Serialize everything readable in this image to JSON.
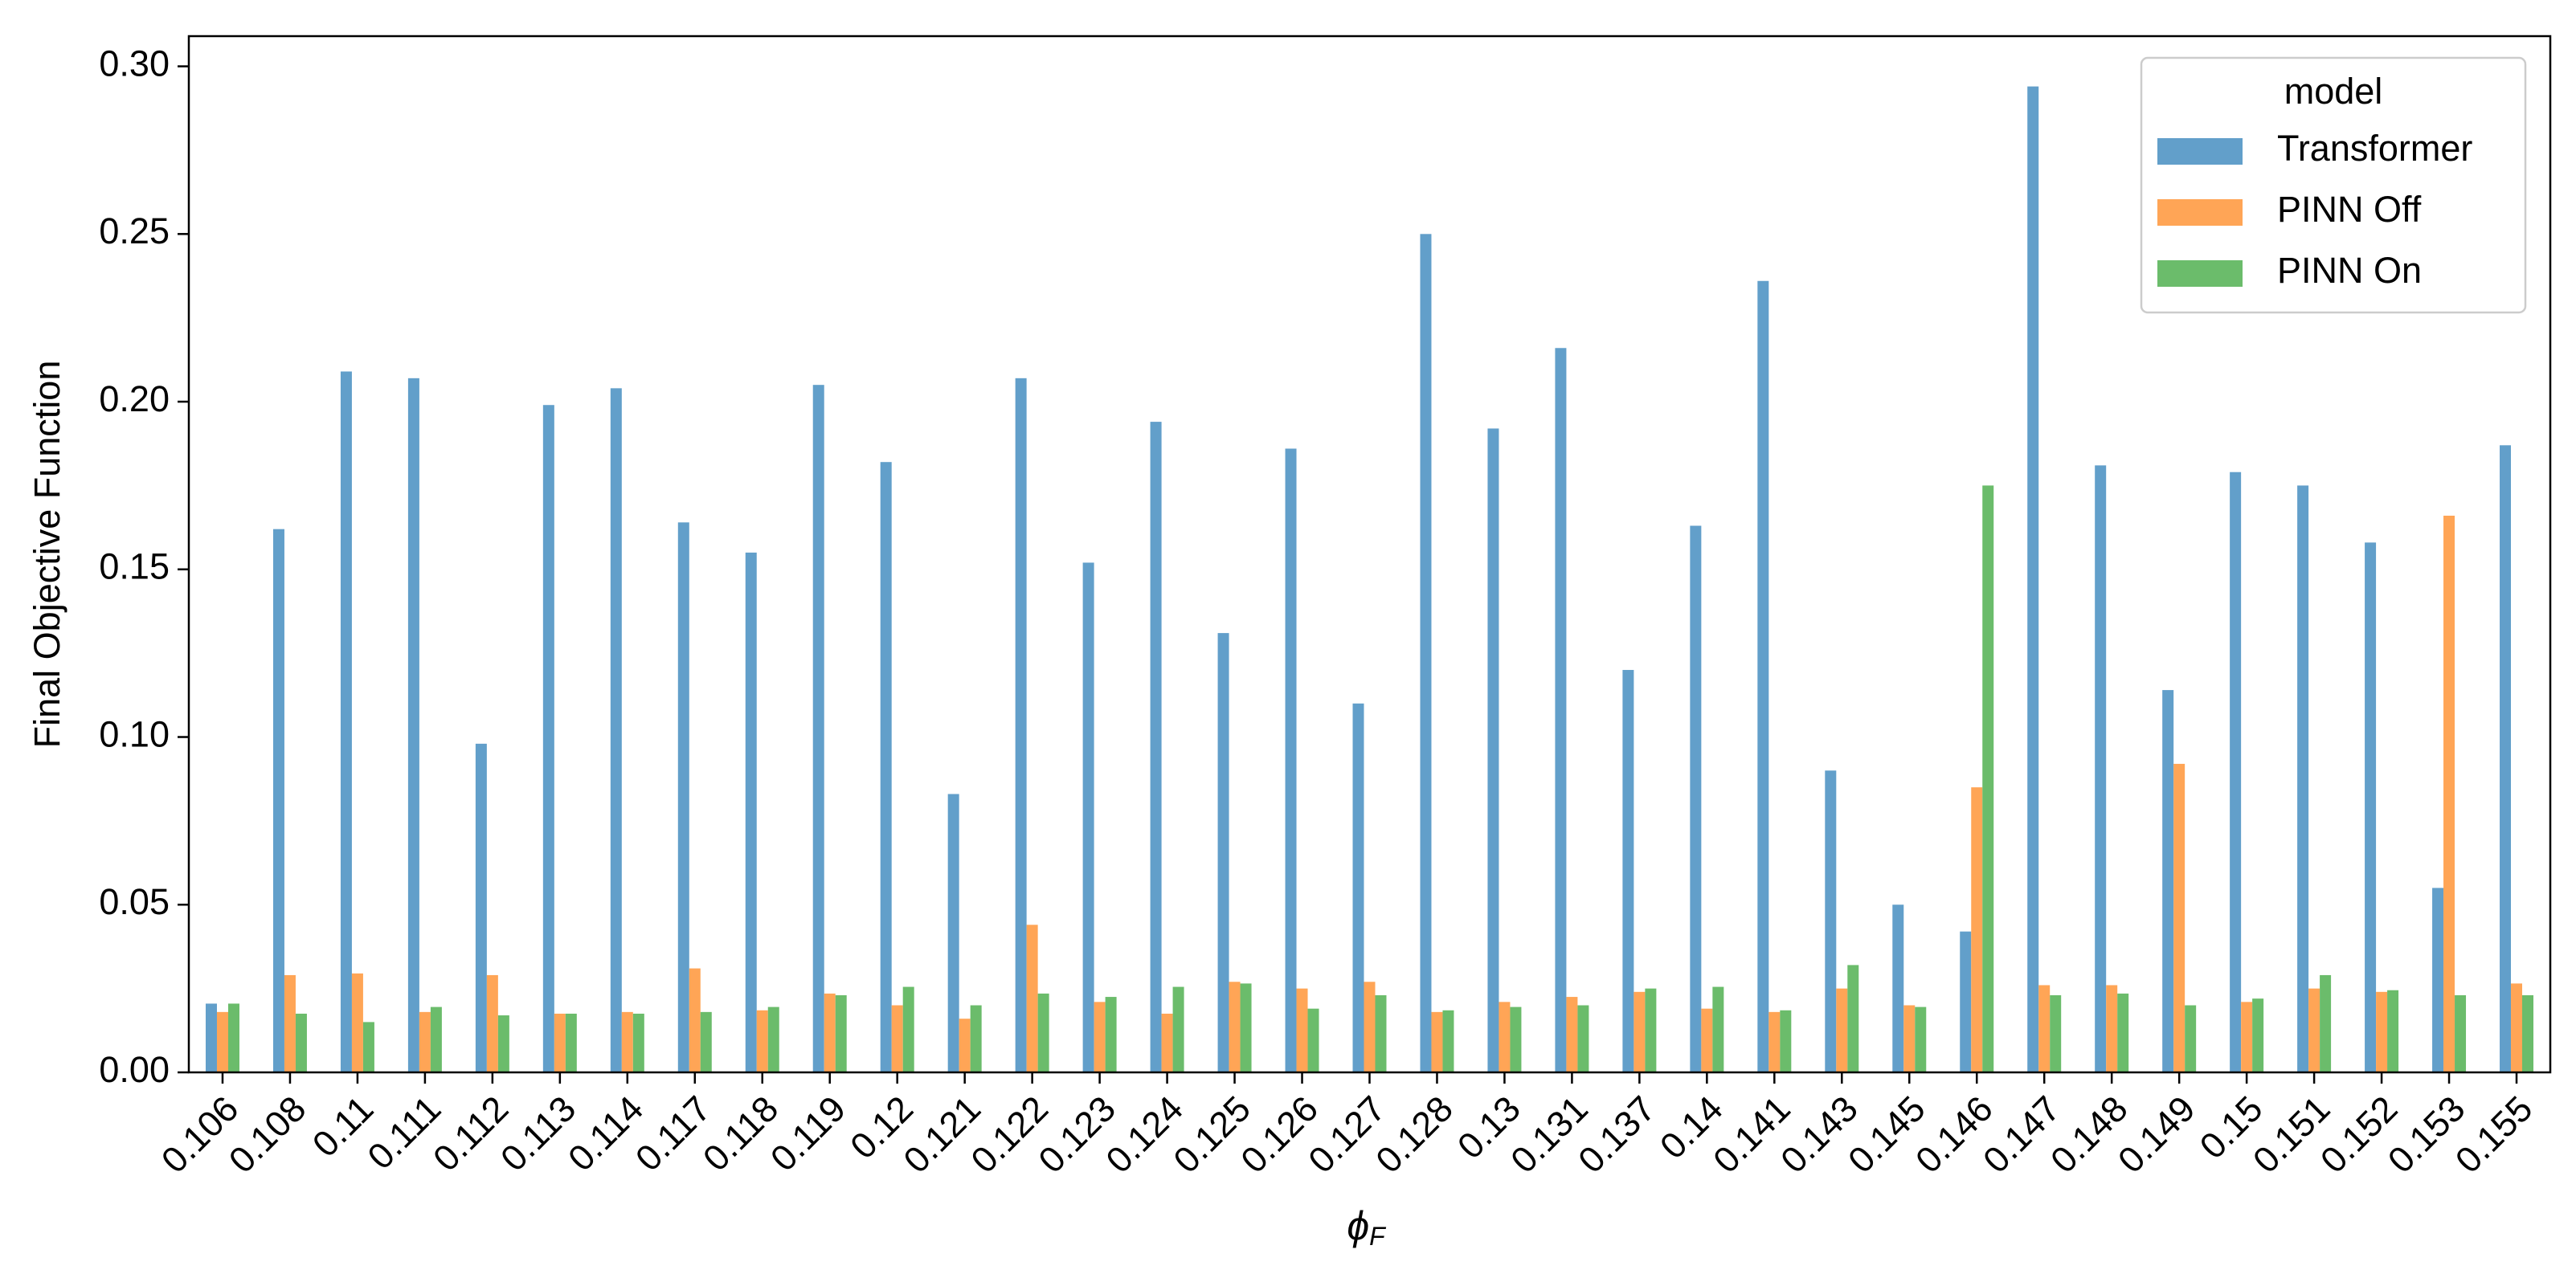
{
  "chart_data": {
    "type": "bar",
    "x_label": {
      "symbol": "ϕ",
      "subscript": "F"
    },
    "y_label": "Final Objective Function",
    "categories": [
      "0.106",
      "0.108",
      "0.11",
      "0.111",
      "0.112",
      "0.113",
      "0.114",
      "0.117",
      "0.118",
      "0.119",
      "0.12",
      "0.121",
      "0.122",
      "0.123",
      "0.124",
      "0.125",
      "0.126",
      "0.127",
      "0.128",
      "0.13",
      "0.131",
      "0.137",
      "0.14",
      "0.141",
      "0.143",
      "0.145",
      "0.146",
      "0.147",
      "0.148",
      "0.149",
      "0.15",
      "0.151",
      "0.152",
      "0.153",
      "0.155"
    ],
    "series": [
      {
        "name": "Transformer",
        "color": "#629fca",
        "values": [
          0.0205,
          0.162,
          0.209,
          0.207,
          0.098,
          0.199,
          0.204,
          0.164,
          0.155,
          0.205,
          0.182,
          0.083,
          0.207,
          0.152,
          0.194,
          0.131,
          0.186,
          0.11,
          0.25,
          0.192,
          0.216,
          0.12,
          0.163,
          0.236,
          0.09,
          0.05,
          0.042,
          0.294,
          0.181,
          0.114,
          0.179,
          0.175,
          0.158,
          0.055,
          0.187
        ]
      },
      {
        "name": "PINN Off",
        "color": "#ffa556",
        "values": [
          0.018,
          0.029,
          0.0295,
          0.018,
          0.029,
          0.0175,
          0.018,
          0.031,
          0.0185,
          0.0235,
          0.02,
          0.016,
          0.044,
          0.021,
          0.0175,
          0.027,
          0.025,
          0.027,
          0.018,
          0.021,
          0.0225,
          0.024,
          0.019,
          0.018,
          0.025,
          0.02,
          0.085,
          0.026,
          0.026,
          0.092,
          0.021,
          0.025,
          0.024,
          0.166,
          0.0265
        ]
      },
      {
        "name": "PINN On",
        "color": "#6bbc6b",
        "values": [
          0.0205,
          0.0175,
          0.015,
          0.0195,
          0.017,
          0.0175,
          0.0175,
          0.018,
          0.0195,
          0.023,
          0.0255,
          0.02,
          0.0235,
          0.0225,
          0.0255,
          0.0265,
          0.019,
          0.023,
          0.0185,
          0.0195,
          0.02,
          0.025,
          0.0255,
          0.0185,
          0.032,
          0.0195,
          0.175,
          0.023,
          0.0235,
          0.02,
          0.022,
          0.029,
          0.0245,
          0.023,
          0.023
        ]
      }
    ],
    "ylim": [
      0,
      0.309
    ],
    "yticks": [
      {
        "value": 0,
        "label": "0.00"
      },
      {
        "value": 0.05,
        "label": "0.05"
      },
      {
        "value": 0.1,
        "label": "0.10"
      },
      {
        "value": 0.15,
        "label": "0.15"
      },
      {
        "value": 0.2,
        "label": "0.20"
      },
      {
        "value": 0.25,
        "label": "0.25"
      },
      {
        "value": 0.3,
        "label": "0.30"
      }
    ],
    "legend_title": "model",
    "legend_position": "upper right",
    "grid": false
  }
}
